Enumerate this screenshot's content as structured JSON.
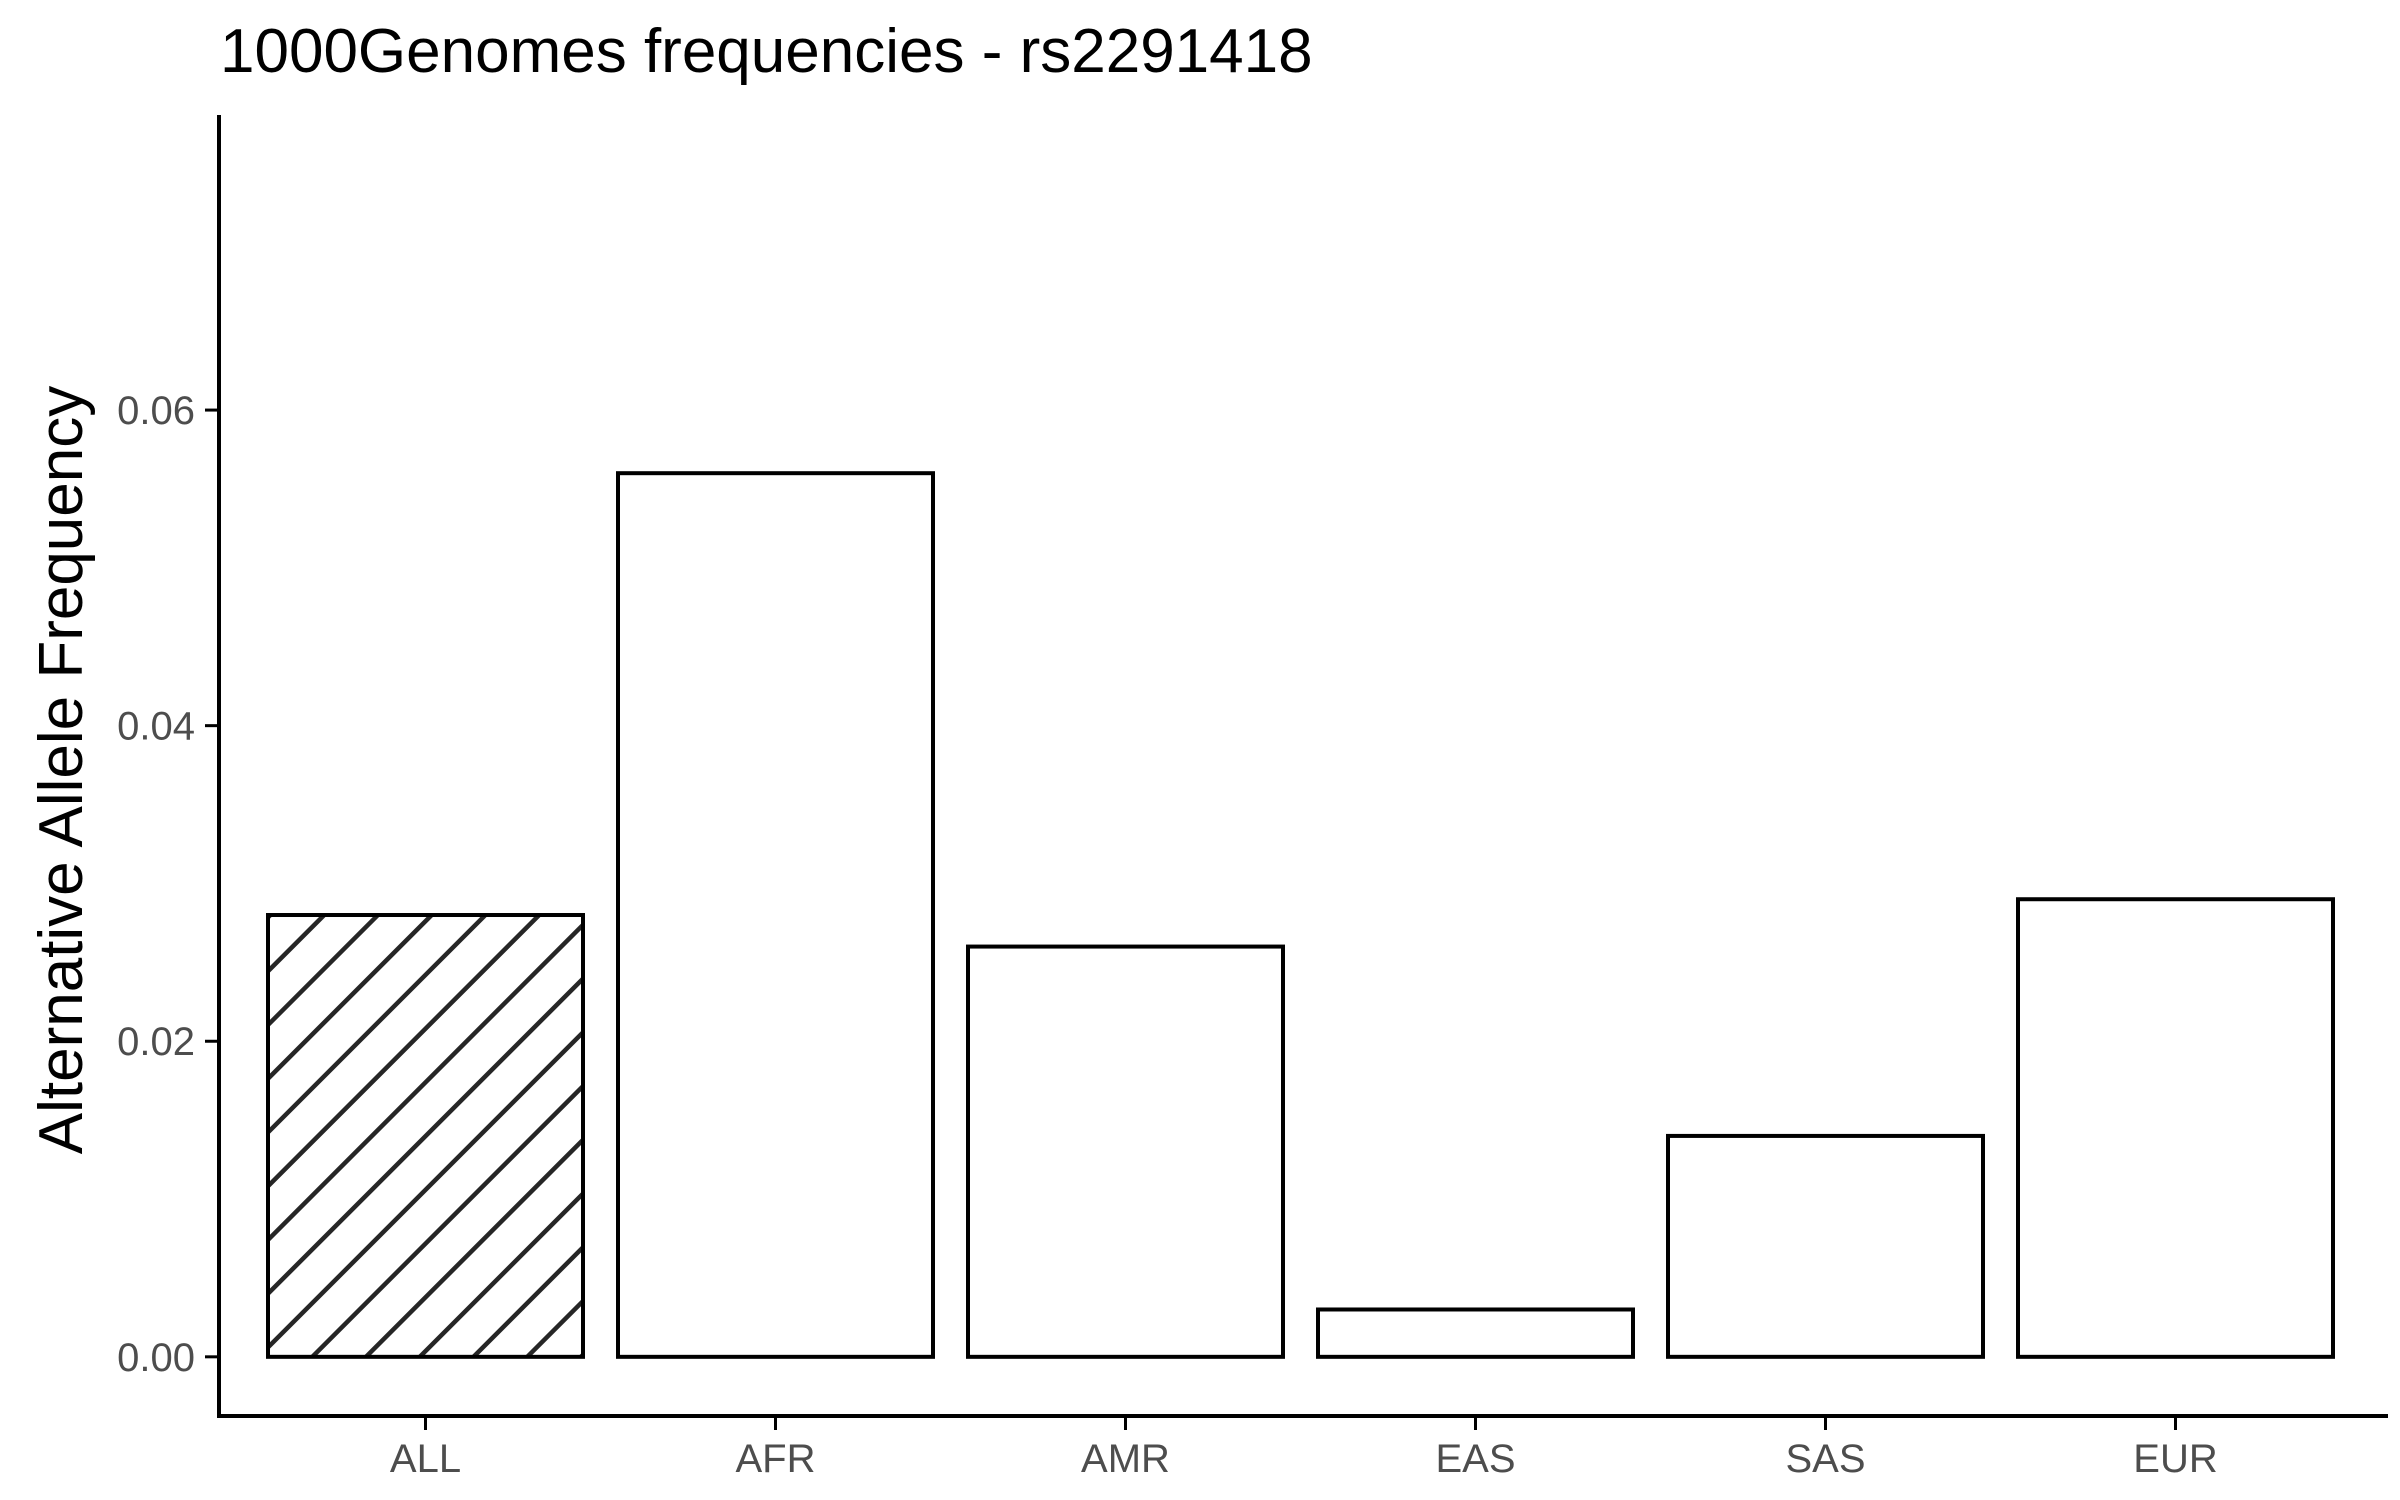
{
  "chart_data": {
    "type": "bar",
    "title": "1000Genomes frequencies - rs2291418",
    "xlabel": "",
    "ylabel": "Alternative Allele Frequency",
    "categories": [
      "ALL",
      "AFR",
      "AMR",
      "EAS",
      "SAS",
      "EUR"
    ],
    "values": [
      0.028,
      0.056,
      0.026,
      0.003,
      0.014,
      0.029
    ],
    "hatched": [
      true,
      false,
      false,
      false,
      false,
      false
    ],
    "ylim": [
      -0.00375,
      0.0787
    ],
    "yticks": [
      0,
      0.02,
      0.04,
      0.06
    ],
    "ytick_labels": [
      "0.00",
      "0.02",
      "0.04",
      "0.06"
    ],
    "grid": false,
    "colors": {
      "bar_fill": "#ffffff",
      "bar_stroke": "#000000",
      "hatch": "#262626",
      "tick_text": "#4d4d4d",
      "axis": "#000000"
    }
  }
}
